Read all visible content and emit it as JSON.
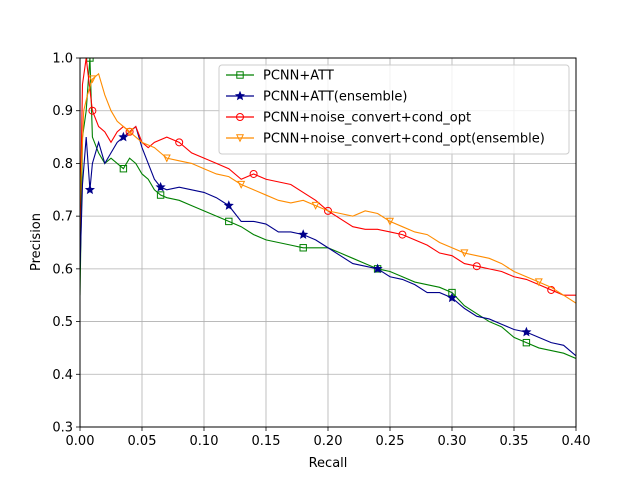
{
  "chart_data": {
    "type": "line",
    "xlabel": "Recall",
    "ylabel": "Precision",
    "xlim": [
      0.0,
      0.4
    ],
    "ylim": [
      0.3,
      1.0
    ],
    "xticks": [
      "0.00",
      "0.05",
      "0.10",
      "0.15",
      "0.20",
      "0.25",
      "0.30",
      "0.35",
      "0.40"
    ],
    "yticks": [
      "0.3",
      "0.4",
      "0.5",
      "0.6",
      "0.7",
      "0.8",
      "0.9",
      "1.0"
    ],
    "grid": true,
    "legend_position": "top-right",
    "series": [
      {
        "name": "PCNN+ATT",
        "color": "#008000",
        "marker": "square",
        "points": [
          [
            0.0,
            0.55
          ],
          [
            0.002,
            0.85
          ],
          [
            0.005,
            0.9
          ],
          [
            0.008,
            1.0
          ],
          [
            0.01,
            0.85
          ],
          [
            0.015,
            0.82
          ],
          [
            0.02,
            0.8
          ],
          [
            0.025,
            0.81
          ],
          [
            0.03,
            0.8
          ],
          [
            0.035,
            0.79
          ],
          [
            0.04,
            0.81
          ],
          [
            0.045,
            0.8
          ],
          [
            0.05,
            0.78
          ],
          [
            0.055,
            0.77
          ],
          [
            0.06,
            0.75
          ],
          [
            0.065,
            0.74
          ],
          [
            0.07,
            0.735
          ],
          [
            0.08,
            0.73
          ],
          [
            0.09,
            0.72
          ],
          [
            0.1,
            0.71
          ],
          [
            0.11,
            0.7
          ],
          [
            0.12,
            0.69
          ],
          [
            0.13,
            0.68
          ],
          [
            0.14,
            0.665
          ],
          [
            0.15,
            0.655
          ],
          [
            0.16,
            0.65
          ],
          [
            0.17,
            0.645
          ],
          [
            0.18,
            0.64
          ],
          [
            0.19,
            0.64
          ],
          [
            0.2,
            0.64
          ],
          [
            0.21,
            0.63
          ],
          [
            0.22,
            0.62
          ],
          [
            0.23,
            0.61
          ],
          [
            0.24,
            0.6
          ],
          [
            0.25,
            0.595
          ],
          [
            0.26,
            0.585
          ],
          [
            0.27,
            0.575
          ],
          [
            0.28,
            0.57
          ],
          [
            0.29,
            0.565
          ],
          [
            0.3,
            0.555
          ],
          [
            0.31,
            0.53
          ],
          [
            0.32,
            0.515
          ],
          [
            0.33,
            0.5
          ],
          [
            0.34,
            0.49
          ],
          [
            0.35,
            0.47
          ],
          [
            0.36,
            0.46
          ],
          [
            0.37,
            0.45
          ],
          [
            0.38,
            0.445
          ],
          [
            0.39,
            0.44
          ],
          [
            0.4,
            0.43
          ]
        ]
      },
      {
        "name": "PCNN+ATT(ensemble)",
        "color": "#00008b",
        "marker": "star",
        "points": [
          [
            0.0,
            0.6
          ],
          [
            0.002,
            0.76
          ],
          [
            0.005,
            0.85
          ],
          [
            0.008,
            0.75
          ],
          [
            0.01,
            0.8
          ],
          [
            0.015,
            0.84
          ],
          [
            0.02,
            0.8
          ],
          [
            0.025,
            0.82
          ],
          [
            0.03,
            0.84
          ],
          [
            0.035,
            0.85
          ],
          [
            0.04,
            0.86
          ],
          [
            0.045,
            0.87
          ],
          [
            0.05,
            0.83
          ],
          [
            0.055,
            0.8
          ],
          [
            0.06,
            0.77
          ],
          [
            0.065,
            0.755
          ],
          [
            0.07,
            0.75
          ],
          [
            0.08,
            0.755
          ],
          [
            0.09,
            0.75
          ],
          [
            0.1,
            0.745
          ],
          [
            0.11,
            0.735
          ],
          [
            0.12,
            0.72
          ],
          [
            0.13,
            0.69
          ],
          [
            0.14,
            0.69
          ],
          [
            0.15,
            0.685
          ],
          [
            0.16,
            0.67
          ],
          [
            0.17,
            0.67
          ],
          [
            0.18,
            0.665
          ],
          [
            0.19,
            0.655
          ],
          [
            0.2,
            0.64
          ],
          [
            0.21,
            0.625
          ],
          [
            0.22,
            0.61
          ],
          [
            0.23,
            0.605
          ],
          [
            0.24,
            0.6
          ],
          [
            0.25,
            0.585
          ],
          [
            0.26,
            0.58
          ],
          [
            0.27,
            0.57
          ],
          [
            0.28,
            0.555
          ],
          [
            0.29,
            0.555
          ],
          [
            0.3,
            0.545
          ],
          [
            0.31,
            0.525
          ],
          [
            0.32,
            0.51
          ],
          [
            0.33,
            0.505
          ],
          [
            0.34,
            0.495
          ],
          [
            0.35,
            0.485
          ],
          [
            0.36,
            0.48
          ],
          [
            0.37,
            0.47
          ],
          [
            0.38,
            0.46
          ],
          [
            0.39,
            0.455
          ],
          [
            0.4,
            0.435
          ]
        ]
      },
      {
        "name": "PCNN+noise_convert+cond_opt",
        "color": "#ff0000",
        "marker": "circle",
        "points": [
          [
            0.0,
            0.67
          ],
          [
            0.002,
            0.95
          ],
          [
            0.005,
            1.0
          ],
          [
            0.01,
            0.9
          ],
          [
            0.015,
            0.87
          ],
          [
            0.02,
            0.86
          ],
          [
            0.025,
            0.84
          ],
          [
            0.03,
            0.86
          ],
          [
            0.035,
            0.87
          ],
          [
            0.04,
            0.86
          ],
          [
            0.045,
            0.87
          ],
          [
            0.05,
            0.84
          ],
          [
            0.055,
            0.83
          ],
          [
            0.06,
            0.84
          ],
          [
            0.07,
            0.85
          ],
          [
            0.08,
            0.84
          ],
          [
            0.09,
            0.82
          ],
          [
            0.1,
            0.81
          ],
          [
            0.11,
            0.8
          ],
          [
            0.12,
            0.79
          ],
          [
            0.13,
            0.77
          ],
          [
            0.14,
            0.78
          ],
          [
            0.15,
            0.77
          ],
          [
            0.16,
            0.765
          ],
          [
            0.17,
            0.76
          ],
          [
            0.18,
            0.745
          ],
          [
            0.19,
            0.73
          ],
          [
            0.2,
            0.71
          ],
          [
            0.21,
            0.695
          ],
          [
            0.22,
            0.68
          ],
          [
            0.23,
            0.675
          ],
          [
            0.24,
            0.675
          ],
          [
            0.25,
            0.67
          ],
          [
            0.26,
            0.665
          ],
          [
            0.27,
            0.655
          ],
          [
            0.28,
            0.645
          ],
          [
            0.29,
            0.63
          ],
          [
            0.3,
            0.625
          ],
          [
            0.31,
            0.61
          ],
          [
            0.32,
            0.605
          ],
          [
            0.33,
            0.6
          ],
          [
            0.34,
            0.595
          ],
          [
            0.35,
            0.585
          ],
          [
            0.36,
            0.58
          ],
          [
            0.37,
            0.57
          ],
          [
            0.38,
            0.56
          ],
          [
            0.39,
            0.55
          ],
          [
            0.4,
            0.55
          ]
        ]
      },
      {
        "name": "PCNN+noise_convert+cond_opt(ensemble)",
        "color": "#ff8c00",
        "marker": "triangle-down",
        "points": [
          [
            0.0,
            0.72
          ],
          [
            0.003,
            0.9
          ],
          [
            0.006,
            0.93
          ],
          [
            0.01,
            0.96
          ],
          [
            0.015,
            0.97
          ],
          [
            0.02,
            0.93
          ],
          [
            0.025,
            0.9
          ],
          [
            0.03,
            0.88
          ],
          [
            0.035,
            0.87
          ],
          [
            0.04,
            0.86
          ],
          [
            0.045,
            0.85
          ],
          [
            0.05,
            0.84
          ],
          [
            0.055,
            0.835
          ],
          [
            0.06,
            0.83
          ],
          [
            0.065,
            0.82
          ],
          [
            0.07,
            0.81
          ],
          [
            0.08,
            0.805
          ],
          [
            0.09,
            0.8
          ],
          [
            0.1,
            0.79
          ],
          [
            0.11,
            0.78
          ],
          [
            0.12,
            0.775
          ],
          [
            0.13,
            0.76
          ],
          [
            0.14,
            0.75
          ],
          [
            0.15,
            0.74
          ],
          [
            0.16,
            0.73
          ],
          [
            0.17,
            0.725
          ],
          [
            0.18,
            0.73
          ],
          [
            0.19,
            0.72
          ],
          [
            0.2,
            0.71
          ],
          [
            0.21,
            0.705
          ],
          [
            0.22,
            0.7
          ],
          [
            0.23,
            0.71
          ],
          [
            0.24,
            0.705
          ],
          [
            0.25,
            0.69
          ],
          [
            0.26,
            0.68
          ],
          [
            0.27,
            0.67
          ],
          [
            0.28,
            0.665
          ],
          [
            0.29,
            0.65
          ],
          [
            0.3,
            0.64
          ],
          [
            0.31,
            0.63
          ],
          [
            0.32,
            0.625
          ],
          [
            0.33,
            0.62
          ],
          [
            0.34,
            0.61
          ],
          [
            0.35,
            0.595
          ],
          [
            0.36,
            0.585
          ],
          [
            0.37,
            0.575
          ],
          [
            0.38,
            0.565
          ],
          [
            0.39,
            0.55
          ],
          [
            0.4,
            0.535
          ]
        ]
      }
    ]
  }
}
